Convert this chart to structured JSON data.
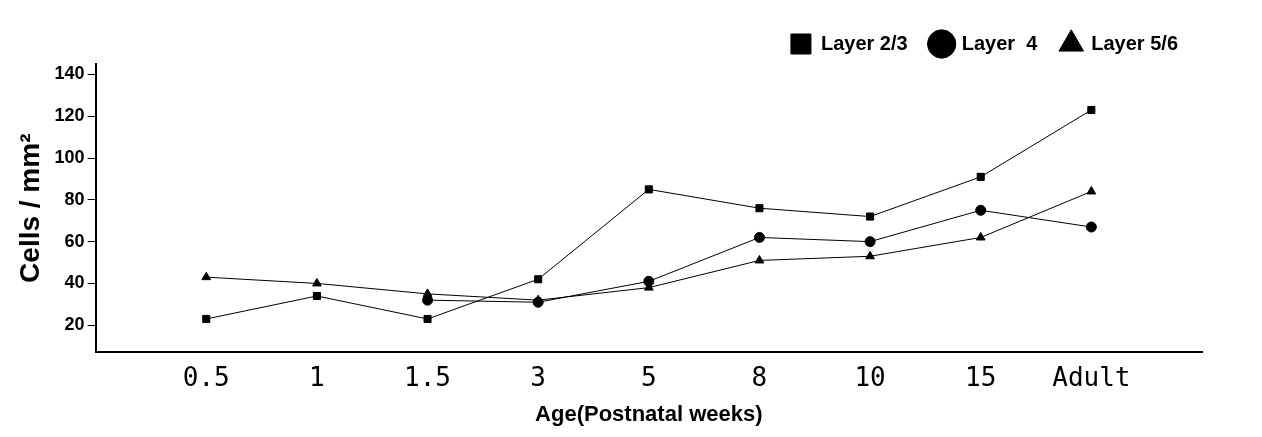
{
  "chart_data": {
    "type": "line",
    "xlabel": "Age(Postnatal weeks)",
    "ylabel": "Cells / mm²",
    "categories": [
      "0.5",
      "1",
      "1.5",
      "3",
      "5",
      "8",
      "10",
      "15",
      "Adult"
    ],
    "series": [
      {
        "name": "Layer 2/3",
        "color": "#000000",
        "marker": "square",
        "values": [
          23,
          34,
          23,
          42,
          85,
          76,
          72,
          91,
          123
        ]
      },
      {
        "name": "Layer  4",
        "color": "#000000",
        "marker": "circle",
        "values": [
          null,
          null,
          32,
          31,
          41,
          62,
          60,
          75,
          67
        ]
      },
      {
        "name": "Layer 5/6",
        "color": "#000000",
        "marker": "triangle",
        "values": [
          43,
          40,
          35,
          32,
          38,
          51,
          53,
          62,
          84
        ]
      }
    ],
    "ylim": [
      7,
      145
    ],
    "yticks": [
      20,
      40,
      60,
      80,
      100,
      120,
      140
    ],
    "grid": false,
    "legend": "top right"
  }
}
